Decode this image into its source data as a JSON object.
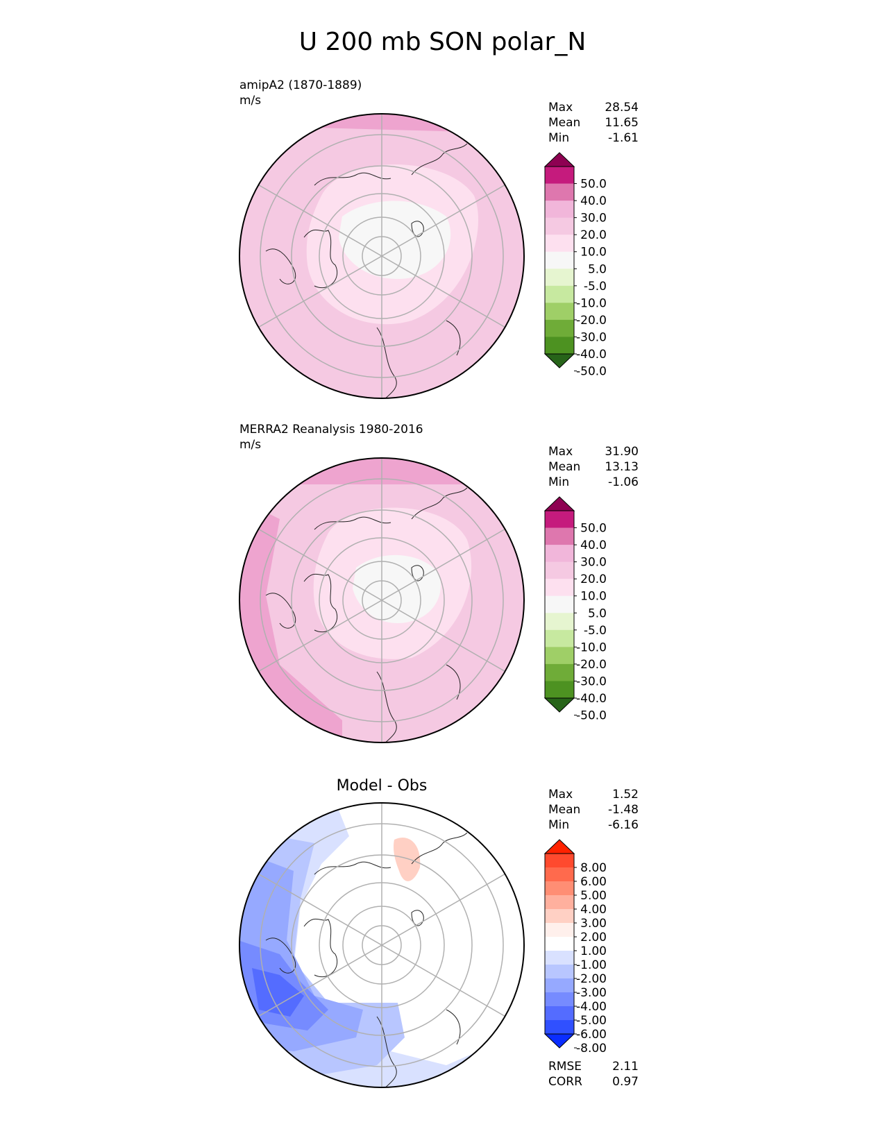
{
  "title": "U 200 mb SON polar_N",
  "panels": [
    {
      "id": "test",
      "name": "amipA2 (1870-1889)",
      "units": "m/s",
      "title": "",
      "stats": [
        {
          "label": "Max",
          "value": "28.54"
        },
        {
          "label": "Mean",
          "value": "11.65"
        },
        {
          "label": "Min",
          "value": "-1.61"
        }
      ],
      "colorbar": {
        "ticks": [
          "50.0",
          "40.0",
          "30.0",
          "20.0",
          "10.0",
          "5.0",
          "-5.0",
          "-10.0",
          "-20.0",
          "-30.0",
          "-40.0",
          "-50.0"
        ],
        "colors": [
          "#8e0152",
          "#c51b7d",
          "#de77ae",
          "#f1b6da",
          "#f5c9e2",
          "#fde0ef",
          "#f7f7f7",
          "#e6f5d0",
          "#c7e9a0",
          "#9fcf67",
          "#6fac38",
          "#4d9221",
          "#276419"
        ]
      }
    },
    {
      "id": "ref",
      "name": "MERRA2 Reanalysis 1980-2016",
      "units": "m/s",
      "title": "",
      "stats": [
        {
          "label": "Max",
          "value": "31.90"
        },
        {
          "label": "Mean",
          "value": "13.13"
        },
        {
          "label": "Min",
          "value": "-1.06"
        }
      ],
      "colorbar": {
        "ticks": [
          "50.0",
          "40.0",
          "30.0",
          "20.0",
          "10.0",
          "5.0",
          "-5.0",
          "-10.0",
          "-20.0",
          "-30.0",
          "-40.0",
          "-50.0"
        ],
        "colors": [
          "#8e0152",
          "#c51b7d",
          "#de77ae",
          "#f1b6da",
          "#f5c9e2",
          "#fde0ef",
          "#f7f7f7",
          "#e6f5d0",
          "#c7e9a0",
          "#9fcf67",
          "#6fac38",
          "#4d9221",
          "#276419"
        ]
      }
    },
    {
      "id": "diff",
      "name": "",
      "units": "",
      "title": "Model - Obs",
      "stats": [
        {
          "label": "Max",
          "value": "1.52"
        },
        {
          "label": "Mean",
          "value": "-1.48"
        },
        {
          "label": "Min",
          "value": "-6.16"
        }
      ],
      "metrics": [
        {
          "label": "RMSE",
          "value": "2.11"
        },
        {
          "label": "CORR",
          "value": "0.97"
        }
      ],
      "colorbar": {
        "ticks": [
          "8.00",
          "6.00",
          "5.00",
          "4.00",
          "3.00",
          "2.00",
          "1.00",
          "-1.00",
          "-2.00",
          "-3.00",
          "-4.00",
          "-5.00",
          "-6.00",
          "-8.00"
        ],
        "colors": [
          "#ff2200",
          "#ff4a2e",
          "#ff6a4d",
          "#ff8e74",
          "#ffb09e",
          "#ffd0c4",
          "#fff0ec",
          "#ffffff",
          "#d9e1ff",
          "#b8c6ff",
          "#96a9ff",
          "#768bff",
          "#546cff",
          "#3050ff",
          "#0a2dff"
        ]
      }
    }
  ],
  "chart_data": [
    {
      "type": "heatmap",
      "projection": "north polar stereographic",
      "title": "amipA2 (1870-1889)",
      "units": "m/s",
      "stats": {
        "max": 28.54,
        "mean": 11.65,
        "min": -1.61
      },
      "levels": [
        -50,
        -40,
        -30,
        -20,
        -10,
        -5,
        5,
        10,
        20,
        30,
        40,
        50
      ]
    },
    {
      "type": "heatmap",
      "projection": "north polar stereographic",
      "title": "MERRA2 Reanalysis 1980-2016",
      "units": "m/s",
      "stats": {
        "max": 31.9,
        "mean": 13.13,
        "min": -1.06
      },
      "levels": [
        -50,
        -40,
        -30,
        -20,
        -10,
        -5,
        5,
        10,
        20,
        30,
        40,
        50
      ]
    },
    {
      "type": "heatmap",
      "projection": "north polar stereographic",
      "title": "Model - Obs",
      "stats": {
        "max": 1.52,
        "mean": -1.48,
        "min": -6.16,
        "rmse": 2.11,
        "corr": 0.97
      },
      "levels": [
        -8,
        -6,
        -5,
        -4,
        -3,
        -2,
        -1,
        1,
        2,
        3,
        4,
        5,
        6,
        8
      ]
    }
  ]
}
